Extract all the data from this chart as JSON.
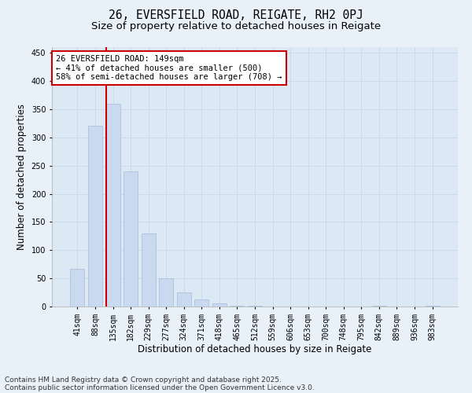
{
  "title_line1": "26, EVERSFIELD ROAD, REIGATE, RH2 0PJ",
  "title_line2": "Size of property relative to detached houses in Reigate",
  "xlabel": "Distribution of detached houses by size in Reigate",
  "ylabel": "Number of detached properties",
  "categories": [
    "41sqm",
    "88sqm",
    "135sqm",
    "182sqm",
    "229sqm",
    "277sqm",
    "324sqm",
    "371sqm",
    "418sqm",
    "465sqm",
    "512sqm",
    "559sqm",
    "606sqm",
    "653sqm",
    "700sqm",
    "748sqm",
    "795sqm",
    "842sqm",
    "889sqm",
    "936sqm",
    "983sqm"
  ],
  "values": [
    67,
    320,
    360,
    240,
    130,
    50,
    25,
    12,
    5,
    2,
    1,
    0,
    0,
    0,
    0,
    0,
    0,
    1,
    0,
    0,
    2
  ],
  "bar_color": "#c9d9f0",
  "bar_edge_color": "#a8bcd8",
  "vline_x_index": 2,
  "vline_color": "#cc0000",
  "annotation_text": "26 EVERSFIELD ROAD: 149sqm\n← 41% of detached houses are smaller (500)\n58% of semi-detached houses are larger (708) →",
  "annotation_box_color": "#ffffff",
  "annotation_box_edge": "#cc0000",
  "ylim": [
    0,
    460
  ],
  "yticks": [
    0,
    50,
    100,
    150,
    200,
    250,
    300,
    350,
    400,
    450
  ],
  "grid_color": "#c8d8ea",
  "background_color": "#e8f0f8",
  "plot_bg_color": "#dce8f4",
  "footer_line1": "Contains HM Land Registry data © Crown copyright and database right 2025.",
  "footer_line2": "Contains public sector information licensed under the Open Government Licence v3.0.",
  "title_fontsize": 10.5,
  "subtitle_fontsize": 9.5,
  "axis_label_fontsize": 8.5,
  "tick_fontsize": 7,
  "annotation_fontsize": 7.5,
  "footer_fontsize": 6.5
}
